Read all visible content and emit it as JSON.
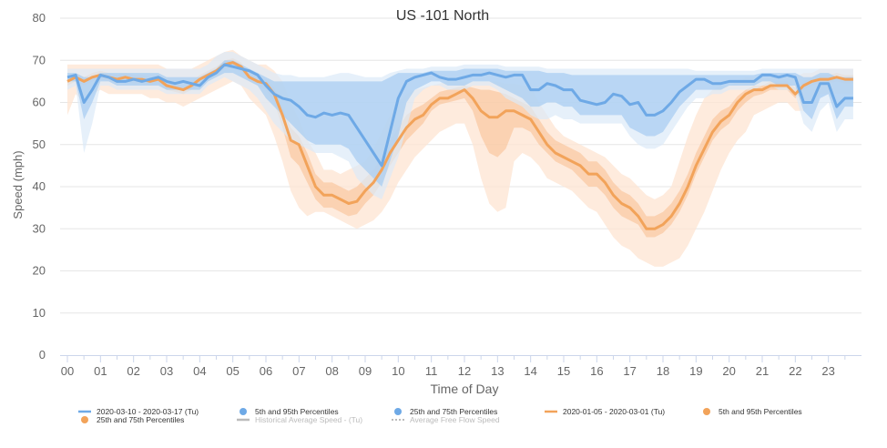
{
  "chart_data": {
    "type": "line",
    "title": "US -101 North",
    "xlabel": "Time of Day",
    "ylabel": "Speed (mph)",
    "ylim": [
      0,
      80
    ],
    "xlim": [
      0,
      24
    ],
    "yticks": [
      0,
      10,
      20,
      30,
      40,
      50,
      60,
      70,
      80
    ],
    "xticks": [
      "00",
      "01",
      "02",
      "03",
      "04",
      "05",
      "06",
      "07",
      "08",
      "09",
      "10",
      "11",
      "12",
      "13",
      "14",
      "15",
      "16",
      "17",
      "18",
      "19",
      "20",
      "21",
      "22",
      "23"
    ],
    "grid": true,
    "legend_position": "bottom",
    "colors": {
      "blue_line": "#6ea9e6",
      "blue_band_outer": "#dce9f8",
      "blue_band_inner": "#a9cdf1",
      "orange_line": "#f2a35a",
      "orange_band_outer": "#fde4d2",
      "orange_band_inner": "#f9c196",
      "grid": "#e6e6e6",
      "axis_text": "#666666",
      "legend_gray": "#bbbbbb"
    },
    "legend": [
      {
        "label": "2020-03-10 - 2020-03-17 (Tu)",
        "marker": "line",
        "color": "#6ea9e6"
      },
      {
        "label": "5th and 95th Percentiles",
        "marker": "dot",
        "color": "#6ea9e6"
      },
      {
        "label": "25th and 75th Percentiles",
        "marker": "dot",
        "color": "#6ea9e6"
      },
      {
        "label": "2020-01-05 - 2020-03-01 (Tu)",
        "marker": "line",
        "color": "#f2a35a"
      },
      {
        "label": "5th and 95th Percentiles",
        "marker": "dot",
        "color": "#f2a35a"
      },
      {
        "label": "25th and 75th Percentiles",
        "marker": "dot",
        "color": "#f2a35a"
      },
      {
        "label": "Historical Average Speed - (Tu)",
        "marker": "line",
        "color": "#bbbbbb",
        "inactive": true
      },
      {
        "label": "Average Free Flow Speed",
        "marker": "dash",
        "color": "#bbbbbb",
        "inactive": true
      }
    ],
    "x": [
      0,
      0.25,
      0.5,
      0.75,
      1,
      1.25,
      1.5,
      1.75,
      2,
      2.25,
      2.5,
      2.75,
      3,
      3.25,
      3.5,
      3.75,
      4,
      4.25,
      4.5,
      4.75,
      5,
      5.25,
      5.5,
      5.75,
      6,
      6.25,
      6.5,
      6.75,
      7,
      7.25,
      7.5,
      7.75,
      8,
      8.25,
      8.5,
      8.75,
      9,
      9.25,
      9.5,
      9.75,
      10,
      10.25,
      10.5,
      10.75,
      11,
      11.25,
      11.5,
      11.75,
      12,
      12.25,
      12.5,
      12.75,
      13,
      13.25,
      13.5,
      13.75,
      14,
      14.25,
      14.5,
      14.75,
      15,
      15.25,
      15.5,
      15.75,
      16,
      16.25,
      16.5,
      16.75,
      17,
      17.25,
      17.5,
      17.75,
      18,
      18.25,
      18.5,
      18.75,
      19,
      19.25,
      19.5,
      19.75,
      20,
      20.25,
      20.5,
      20.75,
      21,
      21.25,
      21.5,
      21.75,
      22,
      22.25,
      22.5,
      22.75,
      23,
      23.25,
      23.5,
      23.75
    ],
    "series": [
      {
        "name": "2020-03-10 - 2020-03-17 (Tu)",
        "values": [
          66,
          66.5,
          60,
          63,
          66.5,
          66,
          65,
          65,
          65.5,
          65,
          65.5,
          66,
          65,
          64.5,
          65,
          64.5,
          64,
          66,
          67,
          69,
          68.5,
          68,
          67.5,
          66.5,
          64,
          62,
          61,
          60.5,
          59,
          57,
          56.5,
          57.5,
          57,
          57.5,
          57,
          54,
          51,
          48,
          45,
          53,
          61,
          65,
          66,
          66.5,
          67,
          66,
          65.5,
          65.5,
          66,
          66.5,
          66.5,
          67,
          66.5,
          66,
          66.5,
          66.5,
          63,
          63,
          64.5,
          64,
          63,
          63,
          60.5,
          60,
          59.5,
          60,
          62,
          61.5,
          59.5,
          60,
          57,
          57,
          58,
          60,
          62.5,
          64,
          65.5,
          65.5,
          64.5,
          64.5,
          65,
          65,
          65,
          65,
          66.5,
          66.5,
          66,
          66.5,
          66,
          60,
          60,
          64.5,
          64.5,
          59,
          61,
          61
        ],
        "p5": [
          63,
          64,
          48,
          55,
          64,
          64,
          63,
          63,
          63,
          63,
          63,
          63,
          62,
          62,
          62,
          62,
          62,
          64,
          65,
          66,
          65,
          64,
          63,
          61,
          58,
          55,
          53,
          51,
          50,
          49,
          48,
          48,
          48,
          47,
          46,
          42,
          40,
          38,
          37,
          42,
          47,
          54,
          61,
          63,
          64,
          64,
          63,
          63,
          63,
          64,
          64,
          64,
          63,
          61,
          60,
          59,
          57,
          56,
          56,
          57,
          56,
          56,
          55,
          55,
          55,
          55,
          55,
          55,
          52,
          50,
          49,
          49,
          50,
          53,
          56,
          59,
          61,
          61,
          62,
          62,
          63,
          63,
          63,
          63,
          64,
          64,
          63,
          63,
          62,
          55,
          53,
          58,
          60,
          53,
          56,
          56
        ],
        "p95": [
          68,
          68,
          68,
          68,
          68,
          68,
          68,
          68,
          68,
          68,
          68,
          68,
          68,
          68,
          68,
          68,
          68,
          69,
          71,
          72,
          72,
          71,
          70,
          69,
          68,
          67,
          66.5,
          66.5,
          66,
          66,
          66,
          66,
          66.5,
          67,
          67,
          66.5,
          66,
          66,
          66,
          67,
          67.5,
          68,
          68,
          68,
          68.5,
          68.5,
          68.5,
          68.5,
          69,
          69,
          69,
          69,
          69,
          68.5,
          68.5,
          68.5,
          68.5,
          68.5,
          68,
          68,
          68,
          68,
          68,
          68,
          68,
          68,
          68,
          68,
          68,
          68,
          68,
          68,
          68,
          68,
          68,
          68,
          67.5,
          67.5,
          67.5,
          67.5,
          67.5,
          67.5,
          67.5,
          67.5,
          68,
          68,
          68,
          68,
          68,
          68,
          68,
          68,
          68,
          68,
          68,
          68
        ],
        "p25": [
          65,
          65,
          56,
          60,
          65,
          65,
          64,
          64,
          64,
          64,
          64,
          64,
          63,
          63,
          63,
          63,
          63,
          65,
          66,
          67,
          67,
          66,
          65,
          64,
          61,
          59,
          57,
          55,
          53,
          51,
          50,
          50,
          50,
          50,
          49,
          46,
          44,
          42,
          40,
          46,
          52,
          60,
          63,
          64,
          65,
          65,
          64,
          64,
          64,
          65,
          65,
          65,
          64,
          63,
          62,
          61,
          59,
          59,
          60,
          60,
          59,
          59,
          57,
          57,
          57,
          57,
          57,
          57,
          54,
          53,
          52,
          52,
          53,
          56,
          59,
          61,
          63,
          63,
          63,
          63,
          64,
          64,
          64,
          64,
          65,
          65,
          64,
          64,
          64,
          58,
          56,
          61,
          62,
          56,
          59,
          59
        ],
        "p75": [
          67,
          67,
          66,
          66,
          67,
          67,
          67,
          67,
          67,
          67,
          67,
          67,
          66,
          66,
          66,
          66,
          66,
          67,
          68,
          70,
          70,
          69,
          68,
          67,
          66,
          65,
          65,
          65,
          65,
          65,
          65,
          65,
          65,
          65,
          65,
          65,
          65,
          65,
          65,
          66,
          67,
          67,
          67,
          67,
          67.5,
          67.5,
          67.5,
          67.5,
          68,
          68,
          68,
          68,
          68,
          67.5,
          67.5,
          67.5,
          67.5,
          67.5,
          67,
          67,
          67,
          66.5,
          66.5,
          66.5,
          66.5,
          66.5,
          66.5,
          66.5,
          66.5,
          66.5,
          66.5,
          66.5,
          66.5,
          66.5,
          66.5,
          66.5,
          66.5,
          66.5,
          66.5,
          66.5,
          66.5,
          66.5,
          66.5,
          66.5,
          67,
          67,
          67,
          67,
          67,
          66,
          66,
          67,
          67,
          66,
          66,
          66
        ]
      },
      {
        "name": "2020-01-05 - 2020-03-01 (Tu)",
        "values": [
          65,
          66,
          65,
          66,
          66.5,
          66,
          65.5,
          66,
          65.5,
          65.5,
          65,
          65.5,
          64,
          63.5,
          63,
          64,
          65.5,
          66.5,
          67.5,
          69,
          69.5,
          68.5,
          66,
          65,
          64.5,
          62,
          57,
          51,
          50,
          45,
          40,
          38,
          38,
          37,
          36,
          36.5,
          39,
          41,
          44,
          48,
          51,
          54,
          56,
          57,
          59.5,
          61,
          61,
          62,
          63,
          61,
          58,
          56.5,
          56.5,
          58,
          58,
          57,
          56,
          53,
          50,
          48,
          47,
          46,
          45,
          43,
          43,
          41,
          38,
          36,
          35,
          33,
          30,
          30,
          31,
          33,
          36,
          40,
          45,
          49,
          53,
          55.5,
          57,
          60,
          62,
          63,
          63,
          64,
          64,
          64,
          62,
          64,
          65,
          65.5,
          65.5,
          66,
          65.5,
          65.5
        ],
        "p5": [
          57,
          62,
          60,
          62,
          63,
          62,
          62,
          62,
          62,
          62,
          61,
          61,
          60,
          60,
          59,
          60,
          61,
          62,
          63,
          64,
          65,
          64,
          61,
          59,
          57,
          52,
          46,
          39,
          35,
          33,
          34,
          34,
          33,
          32,
          31,
          30,
          31,
          32,
          34,
          37,
          41,
          44,
          47,
          49,
          51,
          53,
          54,
          55,
          55,
          50,
          42,
          36,
          34,
          35,
          46,
          48,
          47,
          45,
          42,
          41,
          40,
          39,
          37,
          35,
          34,
          31,
          28,
          26,
          25,
          23,
          22,
          21,
          21,
          22,
          23,
          26,
          30,
          34,
          39,
          44,
          48,
          51,
          53,
          57,
          58,
          59,
          60,
          60,
          58,
          58,
          60,
          62,
          62,
          62,
          62,
          62
        ],
        "p95": [
          69,
          69,
          69,
          69,
          69,
          69,
          69,
          69,
          69,
          69,
          69,
          69,
          68,
          68,
          68,
          68,
          69,
          70,
          71,
          72,
          72.5,
          71,
          70,
          69,
          69,
          67.5,
          65,
          60,
          56,
          51,
          48,
          44,
          44,
          43,
          44,
          45,
          46,
          49,
          53,
          57,
          60,
          62,
          63,
          63.5,
          64,
          64.5,
          65,
          65,
          65,
          65,
          65,
          65,
          65,
          64.5,
          64.5,
          64,
          64,
          60,
          57,
          54,
          52,
          51,
          50,
          49,
          48,
          47,
          45,
          43,
          42,
          40,
          38,
          37,
          38,
          40,
          46,
          52,
          57,
          61,
          63,
          64,
          64,
          65,
          66,
          66,
          66,
          66,
          66,
          66,
          66,
          67,
          67,
          68,
          68,
          68,
          68,
          68
        ],
        "p25": [
          64,
          65,
          64,
          65,
          65.5,
          65,
          64.5,
          65,
          64.5,
          64.5,
          64,
          64.5,
          63,
          62.5,
          62,
          63,
          64.5,
          65.5,
          66.5,
          68,
          68.5,
          67.5,
          65,
          64,
          63,
          60,
          54,
          47,
          45,
          41,
          37,
          35,
          35,
          34,
          33,
          33.5,
          36,
          38,
          41,
          45,
          48,
          51,
          53,
          55,
          58,
          59.5,
          60,
          60.5,
          61,
          58,
          52,
          48,
          47,
          49,
          54,
          54,
          53,
          50,
          48,
          46,
          45,
          44,
          42,
          40,
          40,
          38,
          35,
          33,
          32,
          31,
          28,
          28,
          29,
          31,
          34,
          38,
          43,
          47,
          51,
          53.5,
          55,
          58,
          60,
          61.5,
          62,
          63,
          63,
          63,
          61,
          63,
          64,
          64.5,
          64.5,
          65,
          64.5,
          64.5
        ],
        "p75": [
          66,
          67,
          66,
          67,
          67.5,
          67,
          66.5,
          67,
          66.5,
          66.5,
          66,
          66.5,
          65,
          64.5,
          64,
          65,
          66.5,
          67.5,
          68.5,
          70,
          70.5,
          69.5,
          67,
          66,
          65.5,
          63.5,
          59,
          54,
          52,
          48,
          43,
          41,
          41,
          40,
          39,
          40,
          42,
          44,
          47,
          51,
          54,
          57,
          58.5,
          59.5,
          61,
          62.5,
          63,
          63.5,
          64,
          63.5,
          63,
          63,
          62.5,
          62,
          61,
          60,
          59,
          56,
          53,
          51,
          50,
          49,
          48,
          46,
          46,
          44,
          41,
          39,
          38,
          36,
          33,
          33,
          34,
          36,
          39,
          43,
          48,
          52,
          56,
          58,
          59,
          61.5,
          63,
          64,
          64,
          65,
          65,
          65,
          63.5,
          65,
          66,
          66.5,
          66.5,
          67,
          66.5,
          66.5
        ]
      }
    ]
  }
}
